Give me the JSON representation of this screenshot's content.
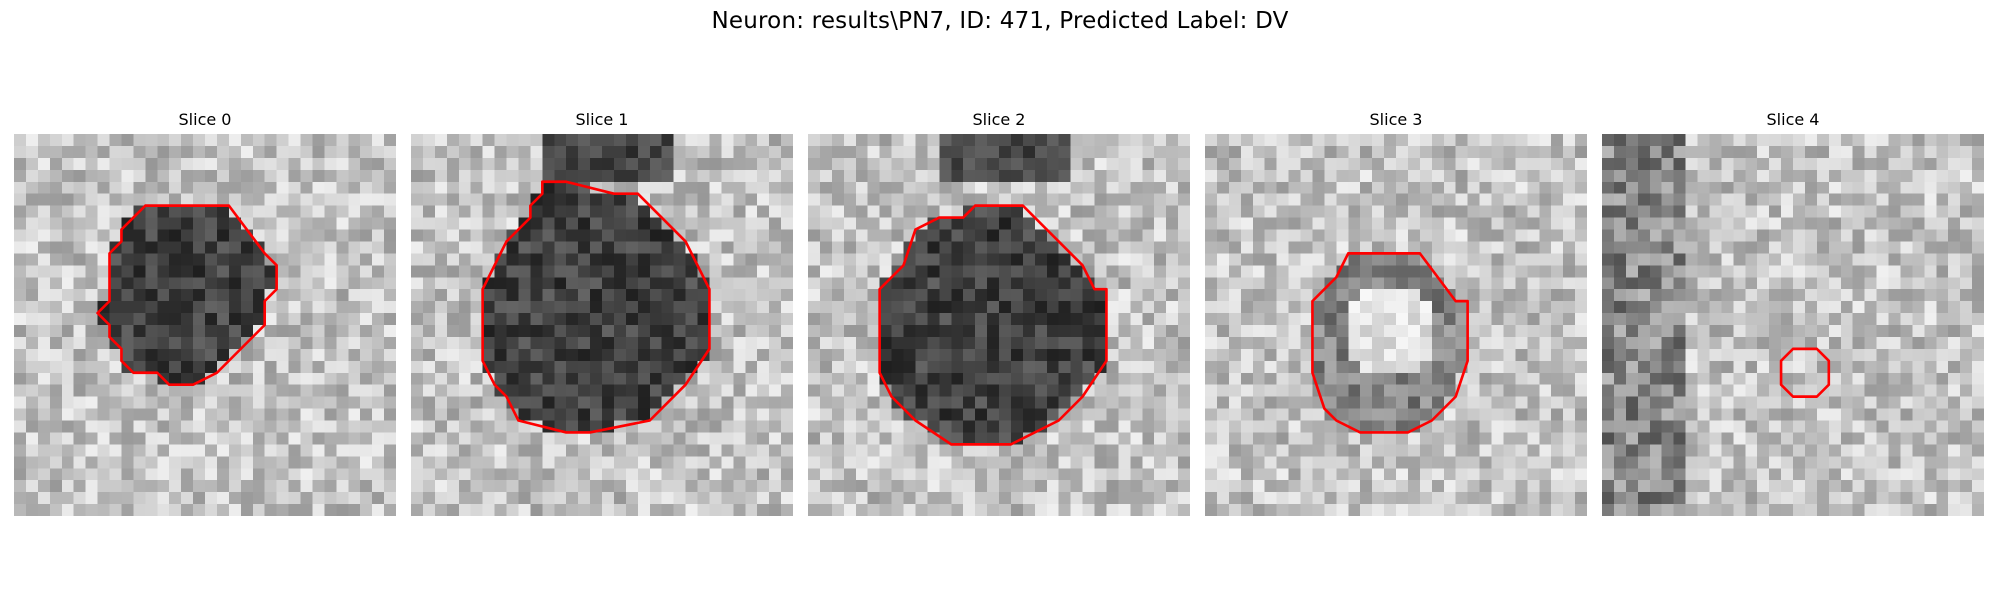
{
  "figure": {
    "title": "Neuron: results\\PN7, ID: 471, Predicted Label: DV",
    "contour_color": "#ff0000"
  },
  "slices": [
    {
      "title": "Slice 0",
      "spot": "dark",
      "contour": [
        [
          12,
          6
        ],
        [
          18,
          6
        ],
        [
          21,
          10
        ],
        [
          22,
          11
        ],
        [
          22,
          13
        ],
        [
          21,
          14
        ],
        [
          21,
          16
        ],
        [
          17,
          20
        ],
        [
          15,
          21
        ],
        [
          13,
          21
        ],
        [
          12,
          20
        ],
        [
          10,
          20
        ],
        [
          9,
          19
        ],
        [
          9,
          18
        ],
        [
          8,
          17
        ],
        [
          8,
          16
        ],
        [
          7,
          15
        ],
        [
          8,
          14
        ],
        [
          8,
          10
        ],
        [
          9,
          9
        ],
        [
          9,
          8
        ],
        [
          10,
          7
        ],
        [
          11,
          6
        ]
      ]
    },
    {
      "title": "Slice 1",
      "spot": "dark",
      "contour": [
        [
          11,
          4
        ],
        [
          13,
          4
        ],
        [
          17,
          5
        ],
        [
          19,
          5
        ],
        [
          23,
          9
        ],
        [
          24,
          11
        ],
        [
          25,
          13
        ],
        [
          25,
          18
        ],
        [
          23,
          21
        ],
        [
          20,
          24
        ],
        [
          15,
          25
        ],
        [
          13,
          25
        ],
        [
          9,
          24
        ],
        [
          8,
          22
        ],
        [
          7,
          21
        ],
        [
          6,
          19
        ],
        [
          6,
          18
        ],
        [
          6,
          13
        ],
        [
          7,
          11
        ],
        [
          8,
          9
        ],
        [
          10,
          7
        ],
        [
          10,
          6
        ],
        [
          11,
          5
        ]
      ]
    },
    {
      "title": "Slice 2",
      "spot": "dark",
      "contour": [
        [
          14,
          6
        ],
        [
          18,
          6
        ],
        [
          23,
          11
        ],
        [
          24,
          13
        ],
        [
          25,
          13
        ],
        [
          25,
          19
        ],
        [
          23,
          22
        ],
        [
          21,
          24
        ],
        [
          17,
          26
        ],
        [
          12,
          26
        ],
        [
          9,
          24
        ],
        [
          7,
          22
        ],
        [
          6,
          20
        ],
        [
          6,
          13
        ],
        [
          8,
          11
        ],
        [
          9,
          8
        ],
        [
          11,
          7
        ],
        [
          13,
          7
        ]
      ]
    },
    {
      "title": "Slice 3",
      "spot": "bright",
      "contour": [
        [
          12,
          10
        ],
        [
          18,
          10
        ],
        [
          21,
          14
        ],
        [
          22,
          14
        ],
        [
          22,
          17
        ],
        [
          22,
          19
        ],
        [
          21,
          22
        ],
        [
          19,
          24
        ],
        [
          17,
          25
        ],
        [
          13,
          25
        ],
        [
          11,
          24
        ],
        [
          10,
          23
        ],
        [
          9,
          20
        ],
        [
          9,
          14
        ],
        [
          10,
          13
        ],
        [
          11,
          12
        ]
      ]
    },
    {
      "title": "Slice 4",
      "spot": "none",
      "contour": [
        [
          16,
          18
        ],
        [
          18,
          18
        ],
        [
          19,
          19
        ],
        [
          19,
          21
        ],
        [
          18,
          22
        ],
        [
          16,
          22
        ],
        [
          15,
          21
        ],
        [
          15,
          19
        ]
      ]
    }
  ]
}
